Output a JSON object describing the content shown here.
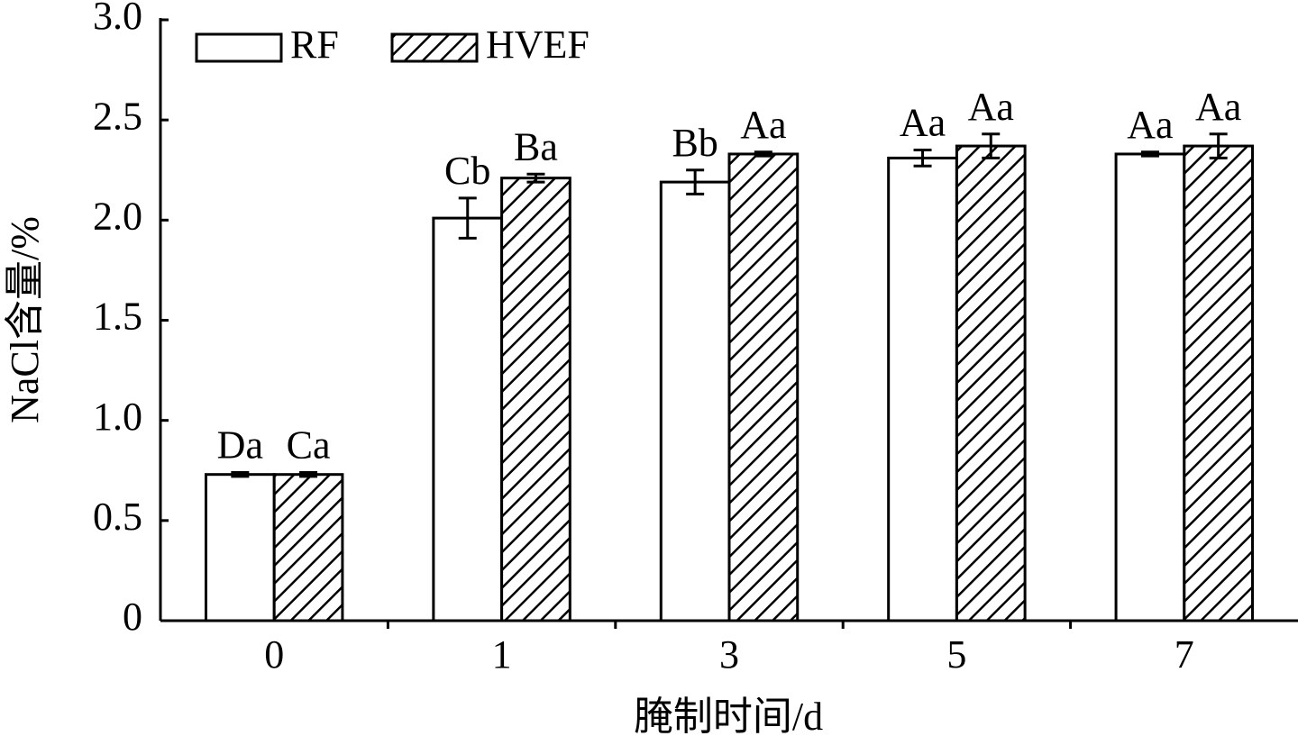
{
  "chart_data": {
    "type": "bar",
    "x_label": "腌制时间/d",
    "y_label": "NaCl含量/%",
    "categories": [
      "0",
      "1",
      "3",
      "5",
      "7"
    ],
    "series": [
      {
        "name": "RF",
        "color": "#ffffff",
        "hatch": false,
        "values": [
          0.73,
          2.01,
          2.19,
          2.31,
          2.33
        ],
        "errors": [
          0.01,
          0.1,
          0.06,
          0.04,
          0.01
        ],
        "labels": [
          "Da",
          "Cb",
          "Bb",
          "Aa",
          "Aa"
        ]
      },
      {
        "name": "HVEF",
        "color": "#ffffff",
        "hatch": true,
        "values": [
          0.73,
          2.21,
          2.33,
          2.37,
          2.37
        ],
        "errors": [
          0.01,
          0.02,
          0.01,
          0.06,
          0.06
        ],
        "labels": [
          "Ca",
          "Ba",
          "Aa",
          "Aa",
          "Aa"
        ]
      }
    ],
    "ylim": [
      0,
      3
    ],
    "yticks": [
      0,
      0.5,
      {
        "value": 1,
        "label": "1.0"
      },
      1.5,
      {
        "value": 2,
        "label": "2.0"
      },
      2.5,
      {
        "value": 3,
        "label": "3.0"
      }
    ],
    "legend": "top-left"
  }
}
